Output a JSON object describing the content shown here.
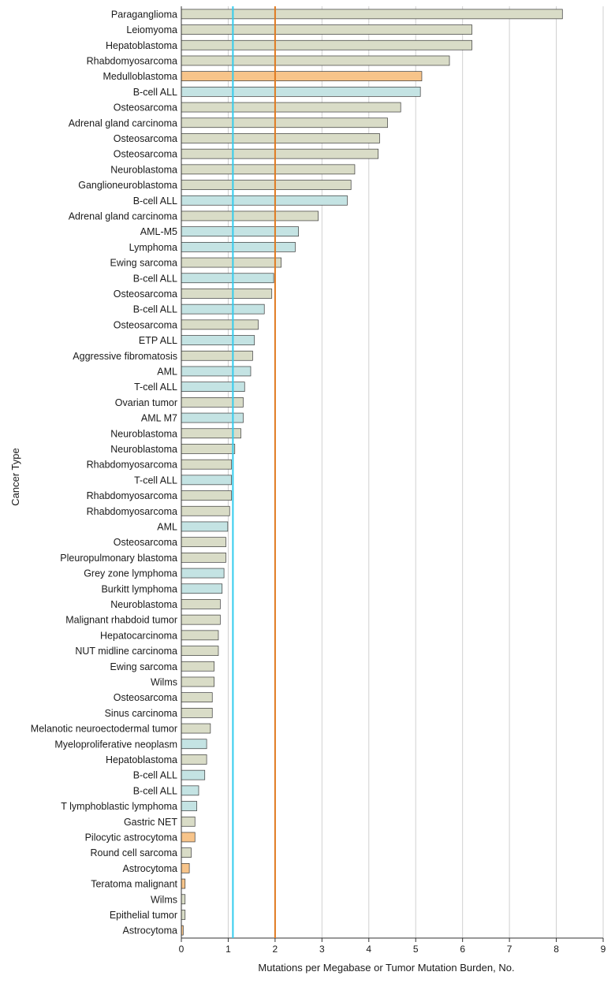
{
  "chart_data": {
    "type": "bar",
    "orientation": "horizontal",
    "title": "",
    "xlabel": "Mutations per Megabase or Tumor Mutation Burden, No.",
    "ylabel": "Cancer Type",
    "xlim": [
      0,
      9
    ],
    "xticks": [
      0,
      1,
      2,
      3,
      4,
      5,
      6,
      7,
      8,
      9
    ],
    "grid": true,
    "group_colors": {
      "solid": "#d9dcc7",
      "hematologic": "#c4e3e3",
      "cns": "#f7c48a"
    },
    "reference_lines": [
      {
        "value": 1.1,
        "color": "#33ccee"
      },
      {
        "value": 2.0,
        "color": "#e07a1f"
      }
    ],
    "categories": [
      "Paraganglioma",
      "Leiomyoma",
      "Hepatoblastoma",
      "Rhabdomyosarcoma",
      "Medulloblastoma",
      "B-cell ALL",
      "Osteosarcoma",
      "Adrenal gland carcinoma",
      "Osteosarcoma",
      "Osteosarcoma",
      "Neuroblastoma",
      "Ganglioneuroblastoma",
      "B-cell ALL",
      "Adrenal gland carcinoma",
      "AML-M5",
      "Lymphoma",
      "Ewing sarcoma",
      "B-cell ALL",
      "Osteosarcoma",
      "B-cell ALL",
      "Osteosarcoma",
      "ETP ALL",
      "Aggressive fibromatosis",
      "AML",
      "T-cell ALL",
      "Ovarian tumor",
      "AML M7",
      "Neuroblastoma",
      "Neuroblastoma",
      "Rhabdomyosarcoma",
      "T-cell ALL",
      "Rhabdomyosarcoma",
      "Rhabdomyosarcoma",
      "AML",
      "Osteosarcoma",
      "Pleuropulmonary blastoma",
      "Grey zone lymphoma",
      "Burkitt lymphoma",
      "Neuroblastoma",
      "Malignant rhabdoid tumor",
      "Hepatocarcinoma",
      "NUT midline carcinoma",
      "Ewing sarcoma",
      "Wilms",
      "Osteosarcoma",
      "Sinus carcinoma",
      "Melanotic neuroectodermal tumor",
      "Myeloproliferative neoplasm",
      "Hepatoblastoma",
      "B-cell ALL",
      "B-cell ALL",
      "T lymphoblastic lymphoma",
      "Gastric NET",
      "Pilocytic astrocytoma",
      "Round cell sarcoma",
      "Astrocytoma",
      "Teratoma malignant",
      "Wilms",
      "Epithelial tumor",
      "Astrocytoma"
    ],
    "values": [
      8.13,
      6.2,
      6.2,
      5.72,
      5.13,
      5.1,
      4.68,
      4.4,
      4.23,
      4.2,
      3.7,
      3.62,
      3.54,
      2.92,
      2.5,
      2.43,
      2.13,
      1.97,
      1.93,
      1.77,
      1.64,
      1.56,
      1.52,
      1.48,
      1.35,
      1.32,
      1.32,
      1.27,
      1.14,
      1.07,
      1.07,
      1.07,
      1.03,
      0.99,
      0.95,
      0.95,
      0.91,
      0.87,
      0.83,
      0.83,
      0.79,
      0.79,
      0.7,
      0.7,
      0.66,
      0.66,
      0.62,
      0.54,
      0.54,
      0.5,
      0.37,
      0.33,
      0.29,
      0.29,
      0.21,
      0.17,
      0.08,
      0.08,
      0.08,
      0.04
    ],
    "groups": [
      "solid",
      "solid",
      "solid",
      "solid",
      "cns",
      "hematologic",
      "solid",
      "solid",
      "solid",
      "solid",
      "solid",
      "solid",
      "hematologic",
      "solid",
      "hematologic",
      "hematologic",
      "solid",
      "hematologic",
      "solid",
      "hematologic",
      "solid",
      "hematologic",
      "solid",
      "hematologic",
      "hematologic",
      "solid",
      "hematologic",
      "solid",
      "solid",
      "solid",
      "hematologic",
      "solid",
      "solid",
      "hematologic",
      "solid",
      "solid",
      "hematologic",
      "hematologic",
      "solid",
      "solid",
      "solid",
      "solid",
      "solid",
      "solid",
      "solid",
      "solid",
      "solid",
      "hematologic",
      "solid",
      "hematologic",
      "hematologic",
      "hematologic",
      "solid",
      "cns",
      "solid",
      "cns",
      "cns",
      "solid",
      "solid",
      "cns"
    ]
  }
}
